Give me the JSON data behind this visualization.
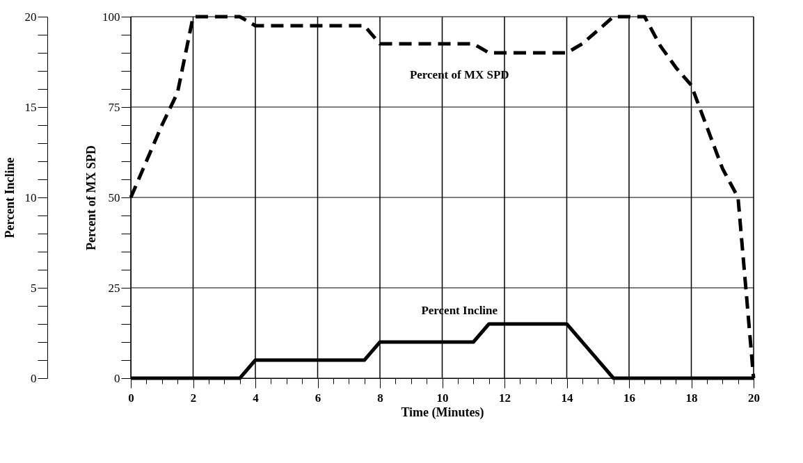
{
  "chart_data": {
    "type": "line",
    "xlabel": "Time (Minutes)",
    "ylabel": "Percent Incline",
    "y2label": "Percent of MX SPD",
    "xlim": [
      0,
      20
    ],
    "xticks": [
      0,
      {
        "value": 0.5,
        "label": null
      },
      {
        "value": 1,
        "label": null
      },
      {
        "value": 1.5,
        "label": null
      },
      2,
      {
        "value": 2.5,
        "label": null
      },
      {
        "value": 3,
        "label": null
      },
      {
        "value": 3.5,
        "label": null
      },
      4,
      {
        "value": 4.5,
        "label": null
      },
      {
        "value": 5,
        "label": null
      },
      {
        "value": 5.5,
        "label": null
      },
      6,
      {
        "value": 6.5,
        "label": null
      },
      {
        "value": 7,
        "label": null
      },
      {
        "value": 7.5,
        "label": null
      },
      8,
      {
        "value": 8.5,
        "label": null
      },
      {
        "value": 9,
        "label": null
      },
      {
        "value": 9.5,
        "label": null
      },
      10,
      {
        "value": 10.5,
        "label": null
      },
      {
        "value": 11,
        "label": null
      },
      {
        "value": 11.5,
        "label": null
      },
      12,
      {
        "value": 12.5,
        "label": null
      },
      {
        "value": 13,
        "label": null
      },
      {
        "value": 13.5,
        "label": null
      },
      14,
      {
        "value": 14.5,
        "label": null
      },
      {
        "value": 15,
        "label": null
      },
      {
        "value": 15.5,
        "label": null
      },
      16,
      {
        "value": 16.5,
        "label": null
      },
      {
        "value": 17,
        "label": null
      },
      {
        "value": 17.5,
        "label": null
      },
      18,
      {
        "value": 18.5,
        "label": null
      },
      {
        "value": 19,
        "label": null
      },
      {
        "value": 19.5,
        "label": null
      },
      20
    ],
    "ylim": [
      0,
      20
    ],
    "yticks": [
      0,
      {
        "value": 1,
        "label": null
      },
      {
        "value": 2,
        "label": null
      },
      {
        "value": 3,
        "label": null
      },
      {
        "value": 4,
        "label": null
      },
      5,
      {
        "value": 6,
        "label": null
      },
      {
        "value": 7,
        "label": null
      },
      {
        "value": 8,
        "label": null
      },
      {
        "value": 9,
        "label": null
      },
      10,
      {
        "value": 11,
        "label": null
      },
      {
        "value": 12,
        "label": null
      },
      {
        "value": 13,
        "label": null
      },
      {
        "value": 14,
        "label": null
      },
      15,
      {
        "value": 16,
        "label": null
      },
      {
        "value": 17,
        "label": null
      },
      {
        "value": 18,
        "label": null
      },
      {
        "value": 19,
        "label": null
      },
      20
    ],
    "y2lim": [
      0,
      100
    ],
    "y2ticks": [
      0,
      {
        "value": 5,
        "label": null
      },
      {
        "value": 10,
        "label": null
      },
      {
        "value": 15,
        "label": null
      },
      {
        "value": 20,
        "label": null
      },
      25,
      {
        "value": 30,
        "label": null
      },
      {
        "value": 35,
        "label": null
      },
      {
        "value": 40,
        "label": null
      },
      {
        "value": 45,
        "label": null
      },
      50,
      {
        "value": 55,
        "label": null
      },
      {
        "value": 60,
        "label": null
      },
      {
        "value": 65,
        "label": null
      },
      {
        "value": 70,
        "label": null
      },
      75,
      {
        "value": 80,
        "label": null
      },
      {
        "value": 85,
        "label": null
      },
      {
        "value": 90,
        "label": null
      },
      {
        "value": 95,
        "label": null
      },
      100
    ],
    "grid": true,
    "marker": "none",
    "series": [
      {
        "name": "Percent of MX SPD",
        "color": "#000000",
        "axis": "y2",
        "line_style": "dashed",
        "x": [
          0,
          1,
          1.5,
          2,
          3.5,
          4,
          7.5,
          8,
          11,
          11.5,
          14,
          14.5,
          15.5,
          16.5,
          17,
          17.5,
          18,
          19,
          19.5,
          20
        ],
        "values": [
          50,
          70,
          79,
          100,
          100,
          97.5,
          97.5,
          92.5,
          92.5,
          90,
          90,
          92.5,
          100,
          100,
          92,
          86,
          81,
          58,
          50,
          0
        ]
      },
      {
        "name": "Percent Incline",
        "color": "#000000",
        "axis": "y",
        "line_style": "solid",
        "x": [
          0,
          3.5,
          4,
          7.5,
          8,
          11,
          11.5,
          14,
          15.5,
          20
        ],
        "values": [
          0,
          0,
          1,
          1,
          2,
          2,
          3,
          3,
          0,
          0
        ]
      }
    ]
  }
}
